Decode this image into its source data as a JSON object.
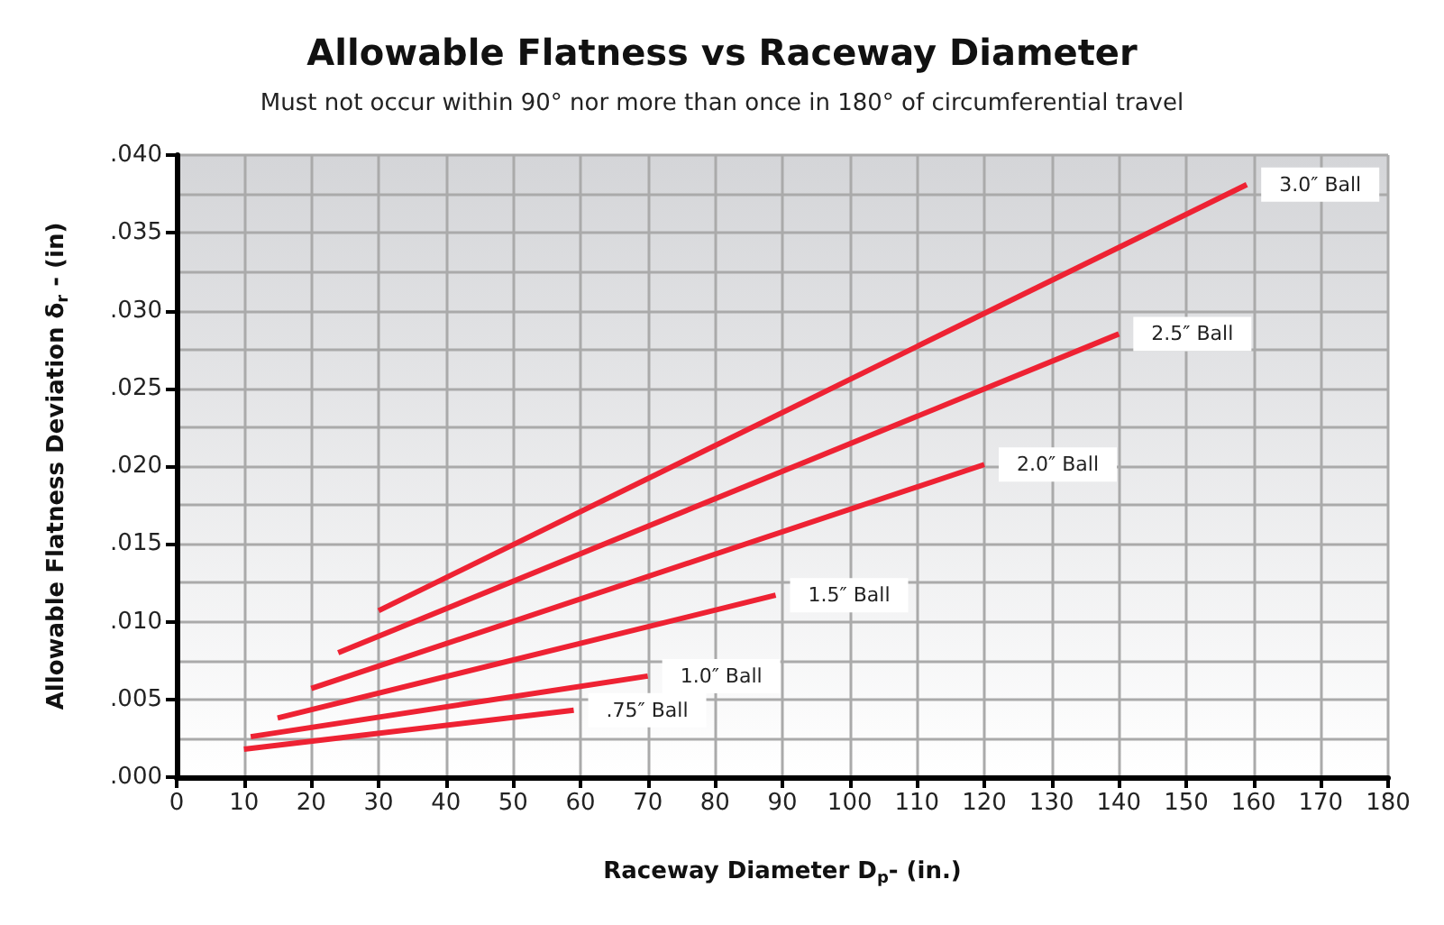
{
  "chart_data": {
    "type": "line",
    "title": "Allowable Flatness vs Raceway Diameter",
    "subtitle": "Must not occur within 90° nor more than once in 180° of circumferential travel",
    "xlabel": "Raceway Diameter D$_{p}$- (in.)",
    "ylabel": "Allowable Flatness Deviation δ$_{r}$ - (in)",
    "series": [
      {
        "name": "3.0″ Ball",
        "color": "#ee2233",
        "x": [
          30,
          159
        ],
        "values": [
          0.0107,
          0.0381
        ]
      },
      {
        "name": "2.5″ Ball",
        "color": "#ee2233",
        "x": [
          24,
          140
        ],
        "values": [
          0.008,
          0.0285
        ]
      },
      {
        "name": "2.0″ Ball",
        "color": "#ee2233",
        "x": [
          20,
          120
        ],
        "values": [
          0.0057,
          0.0201
        ]
      },
      {
        "name": "1.5″ Ball",
        "color": "#ee2233",
        "x": [
          15,
          89
        ],
        "values": [
          0.0038,
          0.0117
        ]
      },
      {
        "name": "1.0″ Ball",
        "color": "#ee2233",
        "x": [
          11,
          70
        ],
        "values": [
          0.0026,
          0.0065
        ]
      },
      {
        "name": ".75″ Ball",
        "color": "#ee2233",
        "x": [
          10,
          59
        ],
        "values": [
          0.0018,
          0.0043
        ]
      }
    ],
    "xlim": [
      0,
      180
    ],
    "xticks": [
      0,
      10,
      20,
      30,
      40,
      50,
      60,
      70,
      80,
      90,
      100,
      110,
      120,
      130,
      140,
      150,
      160,
      170,
      180
    ],
    "ylim": [
      0,
      0.04
    ],
    "yticks": [
      {
        "value": 0,
        "label": ".000"
      },
      {
        "value": 0.005,
        "label": ".005"
      },
      {
        "value": 0.01,
        "label": ".010"
      },
      {
        "value": 0.015,
        "label": ".015"
      },
      {
        "value": 0.02,
        "label": ".020"
      },
      {
        "value": 0.025,
        "label": ".025"
      },
      {
        "value": 0.03,
        "label": ".030"
      },
      {
        "value": 0.035,
        "label": ".035"
      },
      {
        "value": 0.04,
        "label": ".040"
      }
    ],
    "grid": true,
    "legend": false,
    "marker": "none",
    "line_style": "solid"
  }
}
